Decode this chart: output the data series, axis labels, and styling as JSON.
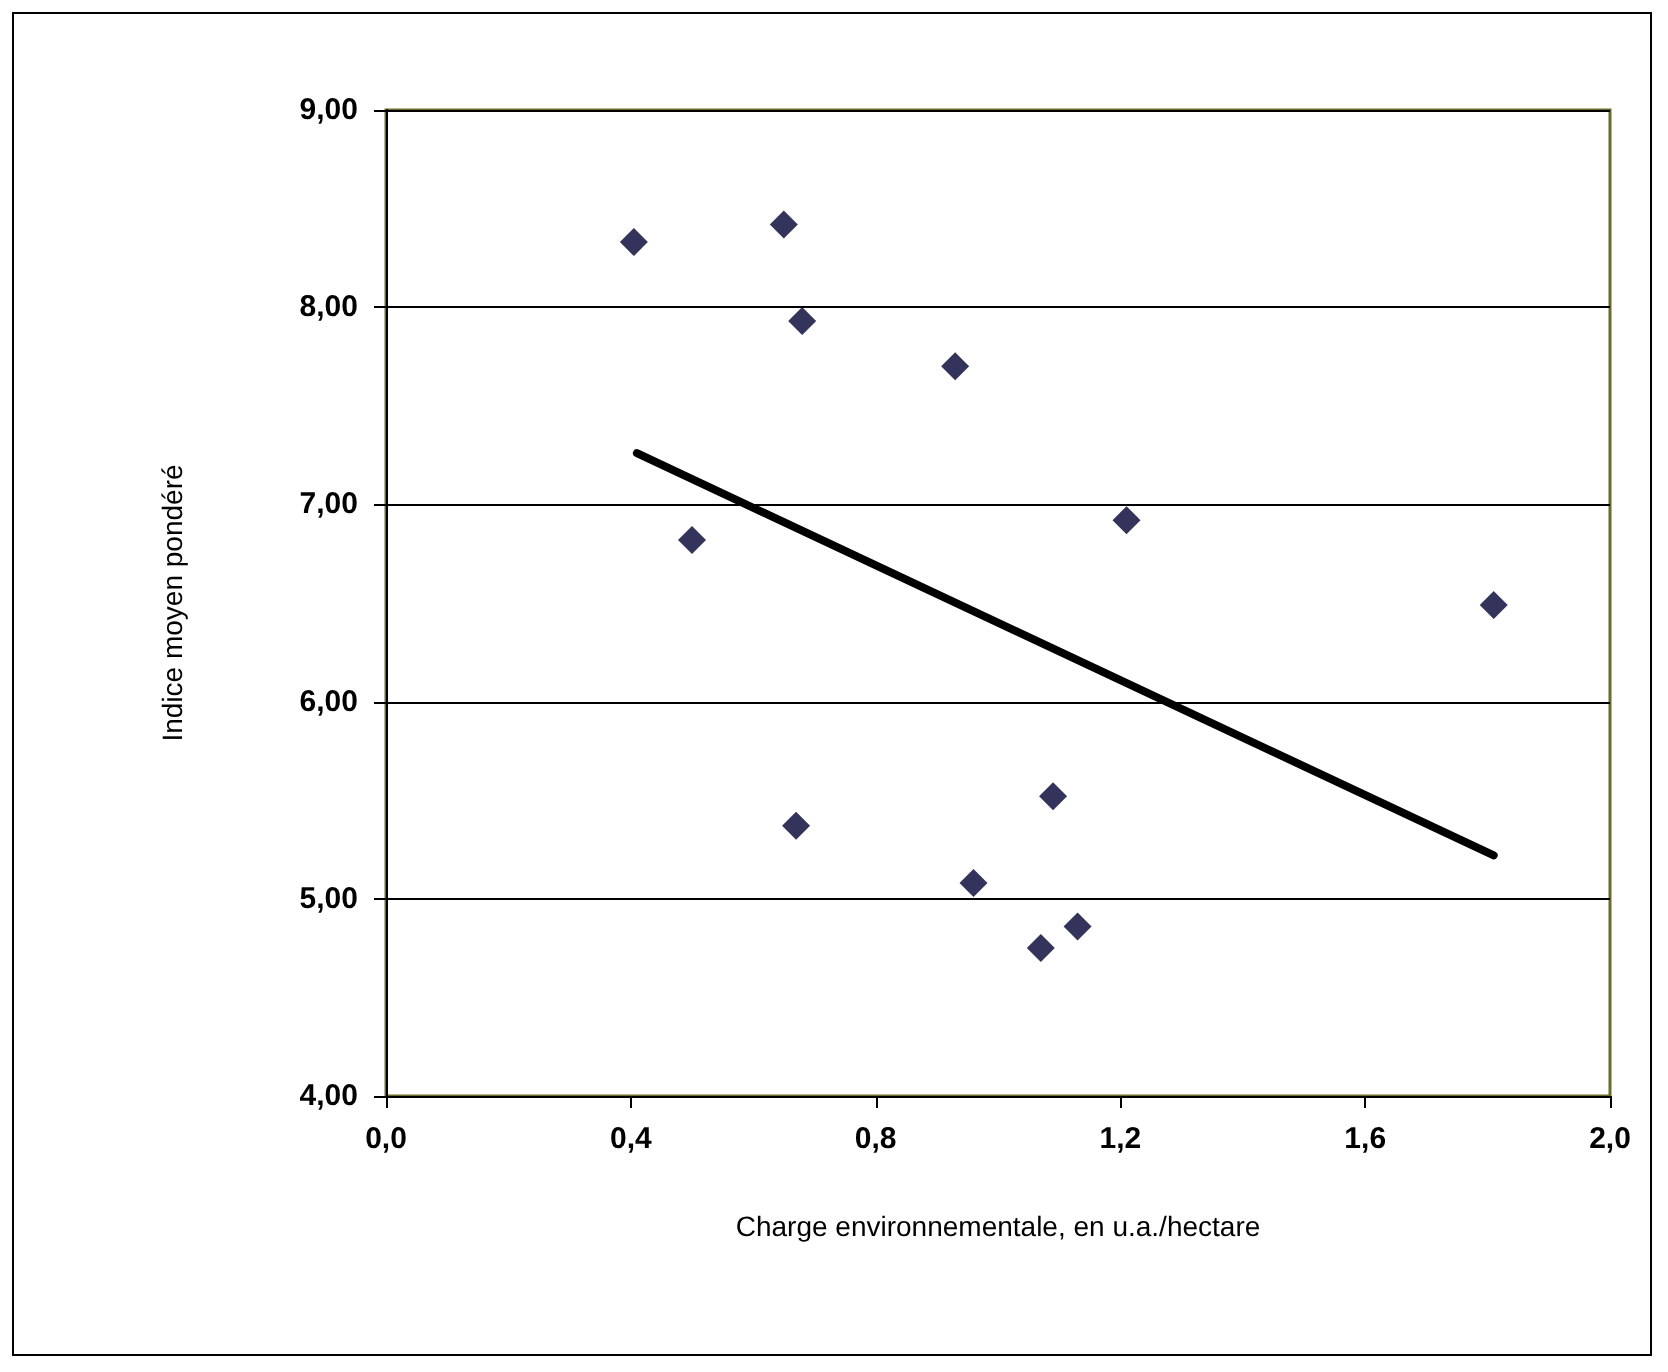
{
  "chart_data": {
    "type": "scatter",
    "xlabel": "Charge environnementale, en u.a./hectare",
    "ylabel": "Indice moyen pondéré",
    "series": [
      {
        "color": "#000033",
        "marker": "diamond",
        "x": [
          0.405,
          0.65,
          0.68,
          0.93,
          0.5,
          1.21,
          0.67,
          1.09,
          0.96,
          1.13,
          1.07,
          1.81
        ],
        "values": [
          8.33,
          8.42,
          7.93,
          7.7,
          6.82,
          6.92,
          5.37,
          5.52,
          5.08,
          4.86,
          4.75,
          6.49
        ]
      },
      {
        "type": "line",
        "color": "#000000",
        "marker": "none",
        "line_style": "solid",
        "x": [
          0.41,
          1.81
        ],
        "values": [
          7.26,
          5.22
        ]
      }
    ],
    "xlim": [
      0,
      2
    ],
    "xticks": [
      {
        "value": 0,
        "label": "0,0"
      },
      {
        "value": 0.4,
        "label": "0,4"
      },
      {
        "value": 0.8,
        "label": "0,8"
      },
      {
        "value": 1.2,
        "label": "1,2"
      },
      {
        "value": 1.6,
        "label": "1,6"
      },
      {
        "value": 2,
        "label": "2,0"
      }
    ],
    "ylim": [
      4,
      9
    ],
    "yticks": [
      {
        "value": 4,
        "label": "4,00"
      },
      {
        "value": 5,
        "label": "5,00"
      },
      {
        "value": 6,
        "label": "6,00"
      },
      {
        "value": 7,
        "label": "7,00"
      },
      {
        "value": 8,
        "label": "8,00"
      },
      {
        "value": 9,
        "label": "9,00"
      }
    ],
    "grid": "y"
  }
}
